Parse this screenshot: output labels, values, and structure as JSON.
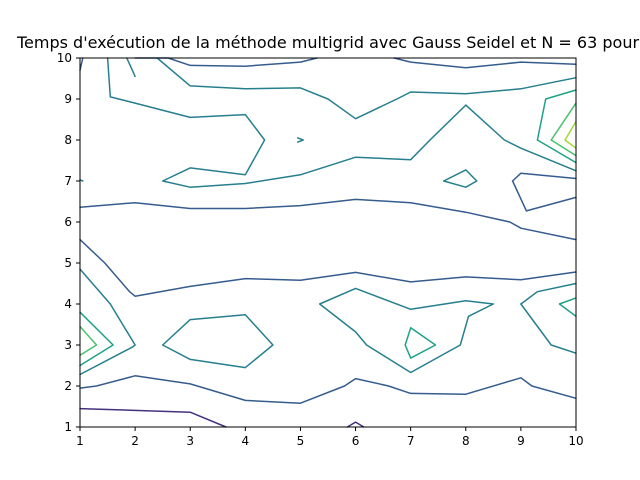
{
  "chart_data": {
    "type": "contour",
    "title": "Temps d'exécution de la méthode multigrid avec Gauss Seidel et N = 63 pour",
    "xlabel": "",
    "ylabel": "",
    "xlim": [
      1,
      10
    ],
    "ylim": [
      1,
      10
    ],
    "x_ticks": [
      "1",
      "2",
      "3",
      "4",
      "5",
      "6",
      "7",
      "8",
      "9",
      "10"
    ],
    "y_ticks": [
      "1",
      "2",
      "3",
      "4",
      "5",
      "6",
      "7",
      "8",
      "9",
      "10"
    ],
    "grid": false,
    "levels": [
      {
        "color": "#46317e",
        "lines": [
          [
            [
              1,
              1.45
            ],
            [
              3,
              1.36
            ],
            [
              3.65,
              1
            ]
          ],
          [
            [
              5.85,
              1
            ],
            [
              6.0,
              1.12
            ],
            [
              6.15,
              1
            ]
          ]
        ]
      },
      {
        "color": "#365c8d",
        "lines": [
          [
            [
              1,
              1.95
            ],
            [
              1.3,
              2.0
            ],
            [
              2.0,
              2.25
            ],
            [
              3.0,
              2.05
            ],
            [
              4.0,
              1.65
            ],
            [
              5.0,
              1.58
            ],
            [
              5.8,
              2.0
            ],
            [
              6.0,
              2.18
            ],
            [
              6.6,
              2.0
            ],
            [
              7.0,
              1.82
            ],
            [
              8.0,
              1.8
            ],
            [
              9.0,
              2.2
            ],
            [
              9.2,
              2.0
            ],
            [
              10,
              1.7
            ]
          ],
          [
            [
              1,
              5.57
            ],
            [
              1.45,
              5.0
            ],
            [
              1.9,
              4.3
            ],
            [
              2.0,
              4.19
            ],
            [
              3.0,
              4.43
            ],
            [
              4.0,
              4.62
            ],
            [
              5.0,
              4.58
            ],
            [
              6.0,
              4.77
            ],
            [
              7.0,
              4.54
            ],
            [
              8.0,
              4.66
            ],
            [
              9.0,
              4.59
            ],
            [
              10,
              4.78
            ]
          ],
          [
            [
              1,
              6.36
            ],
            [
              2.0,
              6.47
            ],
            [
              3.0,
              6.33
            ],
            [
              4.0,
              6.33
            ],
            [
              5.0,
              6.4
            ],
            [
              6.0,
              6.55
            ],
            [
              7.0,
              6.47
            ],
            [
              8.0,
              6.24
            ],
            [
              8.8,
              6.0
            ],
            [
              9.0,
              5.85
            ],
            [
              10,
              5.57
            ]
          ],
          [
            [
              8.85,
              7.0
            ],
            [
              9.0,
              7.19
            ],
            [
              10,
              7.06
            ]
          ],
          [
            [
              8.85,
              7.0
            ],
            [
              9.1,
              6.27
            ],
            [
              10,
              6.6
            ]
          ],
          [
            [
              1.0,
              9.7
            ],
            [
              1.05,
              10
            ]
          ],
          [
            [
              2.0,
              10
            ],
            [
              2.6,
              10
            ],
            [
              3.0,
              9.82
            ],
            [
              4.0,
              9.8
            ],
            [
              5.0,
              9.9
            ],
            [
              5.3,
              10
            ]
          ],
          [
            [
              6.7,
              10
            ],
            [
              7.0,
              9.9
            ],
            [
              8.0,
              9.76
            ],
            [
              9.0,
              9.9
            ],
            [
              10,
              9.85
            ]
          ]
        ]
      },
      {
        "color": "#277f8e",
        "lines": [
          [
            [
              1,
              4.85
            ],
            [
              1.55,
              4.0
            ],
            [
              2.0,
              3.0
            ],
            [
              1.95,
              2.95
            ],
            [
              1,
              2.28
            ]
          ],
          [
            [
              2.5,
              3.0
            ],
            [
              3.0,
              3.62
            ],
            [
              4.0,
              3.74
            ],
            [
              4.5,
              3.0
            ],
            [
              4.0,
              2.45
            ],
            [
              3.0,
              2.65
            ],
            [
              2.5,
              3.0
            ]
          ],
          [
            [
              5.35,
              4.0
            ],
            [
              6.0,
              4.38
            ],
            [
              7.0,
              3.87
            ],
            [
              8.0,
              4.08
            ],
            [
              8.5,
              4.0
            ],
            [
              8.05,
              3.7
            ],
            [
              7.9,
              3.0
            ],
            [
              7.0,
              2.33
            ],
            [
              6.2,
              3.0
            ],
            [
              6.0,
              3.32
            ],
            [
              5.35,
              4.0
            ]
          ],
          [
            [
              1.5,
              10
            ],
            [
              1.55,
              9.05
            ],
            [
              2.0,
              8.9
            ],
            [
              3.0,
              8.55
            ],
            [
              4.0,
              8.62
            ],
            [
              4.35,
              8.0
            ],
            [
              4.0,
              7.15
            ],
            [
              3.0,
              7.32
            ],
            [
              2.5,
              7.0
            ],
            [
              3.0,
              6.85
            ],
            [
              4.0,
              6.94
            ],
            [
              5.0,
              7.15
            ],
            [
              6.0,
              7.58
            ],
            [
              7.0,
              7.52
            ],
            [
              7.35,
              8.0
            ],
            [
              8.0,
              8.85
            ],
            [
              8.7,
              8.0
            ],
            [
              9.0,
              7.8
            ],
            [
              10,
              7.25
            ]
          ],
          [
            [
              2.0,
              9.55
            ],
            [
              1.85,
              10
            ]
          ],
          [
            [
              2.4,
              10
            ],
            [
              3.0,
              9.32
            ],
            [
              4.0,
              9.25
            ],
            [
              5.0,
              9.27
            ],
            [
              5.5,
              9.0
            ],
            [
              6.0,
              8.52
            ],
            [
              6.75,
              9.0
            ],
            [
              7.0,
              9.17
            ],
            [
              8.0,
              9.13
            ],
            [
              9.0,
              9.25
            ],
            [
              10,
              9.52
            ]
          ],
          [
            [
              4.95,
              8.05
            ],
            [
              5.05,
              8.0
            ],
            [
              4.95,
              7.95
            ]
          ],
          [
            [
              7.6,
              7.0
            ],
            [
              8.0,
              7.27
            ],
            [
              8.2,
              7.0
            ],
            [
              8.0,
              6.85
            ],
            [
              7.6,
              7.0
            ]
          ],
          [
            [
              1,
              7.03
            ],
            [
              1.05,
              7.0
            ]
          ],
          [
            [
              9.0,
              4.0
            ],
            [
              9.3,
              4.3
            ],
            [
              10,
              4.5
            ]
          ],
          [
            [
              9.0,
              4.0
            ],
            [
              9.55,
              3.0
            ],
            [
              10,
              2.8
            ]
          ]
        ]
      },
      {
        "color": "#1fa187",
        "lines": [
          [
            [
              1,
              3.8
            ],
            [
              1.6,
              3.0
            ],
            [
              1,
              2.5
            ]
          ],
          [
            [
              6.9,
              3.0
            ],
            [
              7.0,
              3.42
            ],
            [
              7.45,
              3.0
            ],
            [
              7.0,
              2.68
            ],
            [
              6.9,
              3.0
            ]
          ],
          [
            [
              9.7,
              4.0
            ],
            [
              10,
              4.15
            ]
          ],
          [
            [
              9.7,
              4.0
            ],
            [
              10,
              3.7
            ]
          ],
          [
            [
              9.3,
              8.0
            ],
            [
              9.45,
              9.0
            ],
            [
              10,
              9.22
            ]
          ],
          [
            [
              9.3,
              8.0
            ],
            [
              10,
              7.45
            ]
          ]
        ]
      },
      {
        "color": "#4ac16d",
        "lines": [
          [
            [
              1,
              3.45
            ],
            [
              1.3,
              3.0
            ],
            [
              1,
              2.75
            ]
          ],
          [
            [
              9.55,
              8.0
            ],
            [
              10,
              8.9
            ]
          ],
          [
            [
              9.55,
              8.0
            ],
            [
              10,
              7.62
            ]
          ]
        ]
      },
      {
        "color": "#a0da39",
        "lines": [
          [
            [
              9.8,
              8.0
            ],
            [
              10,
              8.45
            ]
          ],
          [
            [
              9.8,
              8.0
            ],
            [
              10,
              7.8
            ]
          ]
        ]
      }
    ]
  }
}
